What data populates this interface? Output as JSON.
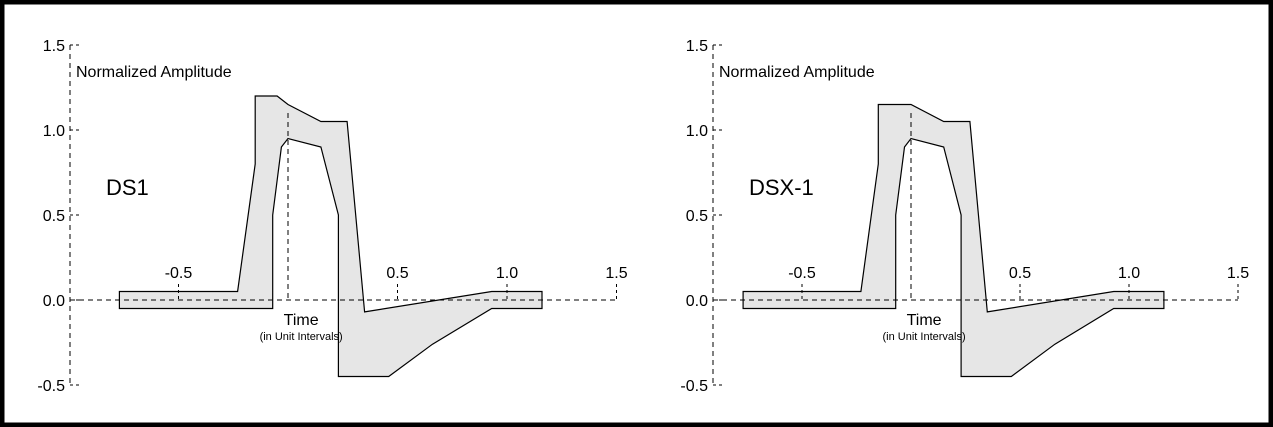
{
  "chart_data": [
    {
      "type": "area",
      "annotation": "DS1",
      "ylabel": "Normalized Amplitude",
      "xlabel": "Time",
      "xlabel_sub": "(in Unit Intervals)",
      "xlim": [
        -1.0,
        1.5
      ],
      "ylim": [
        -0.5,
        1.5
      ],
      "x_ticks": [
        -0.5,
        0.5,
        1.0,
        1.5
      ],
      "x_tick_labels": [
        "-0.5",
        "0.5",
        "1.0",
        "1.5"
      ],
      "y_ticks": [
        -0.5,
        0.0,
        0.5,
        1.0,
        1.5
      ],
      "y_tick_labels": [
        "-0.5",
        "0.0",
        "0.5",
        "1.0",
        "1.5"
      ],
      "upper_limit": [
        [
          -0.77,
          0.05
        ],
        [
          -0.23,
          0.05
        ],
        [
          -0.15,
          0.8
        ],
        [
          -0.15,
          1.2
        ],
        [
          -0.05,
          1.2
        ],
        [
          0.0,
          1.15
        ],
        [
          0.15,
          1.05
        ],
        [
          0.27,
          1.05
        ],
        [
          0.35,
          -0.07
        ],
        [
          0.93,
          0.05
        ],
        [
          1.16,
          0.05
        ]
      ],
      "lower_limit": [
        [
          -0.77,
          -0.05
        ],
        [
          -0.07,
          -0.05
        ],
        [
          -0.07,
          0.5
        ],
        [
          -0.03,
          0.9
        ],
        [
          0.0,
          0.95
        ],
        [
          0.15,
          0.9
        ],
        [
          0.23,
          0.5
        ],
        [
          0.23,
          -0.45
        ],
        [
          0.46,
          -0.45
        ],
        [
          0.66,
          -0.26
        ],
        [
          0.93,
          -0.05
        ],
        [
          1.16,
          -0.05
        ]
      ]
    },
    {
      "type": "area",
      "annotation": "DSX-1",
      "ylabel": "Normalized Amplitude",
      "xlabel": "Time",
      "xlabel_sub": "(in Unit Intervals)",
      "xlim": [
        -1.0,
        1.5
      ],
      "ylim": [
        -0.5,
        1.5
      ],
      "x_ticks": [
        -0.5,
        0.5,
        1.0,
        1.5
      ],
      "x_tick_labels": [
        "-0.5",
        "0.5",
        "1.0",
        "1.5"
      ],
      "y_ticks": [
        -0.5,
        0.0,
        0.5,
        1.0,
        1.5
      ],
      "y_tick_labels": [
        "-0.5",
        "0.0",
        "0.5",
        "1.0",
        "1.5"
      ],
      "upper_limit": [
        [
          -0.77,
          0.05
        ],
        [
          -0.23,
          0.05
        ],
        [
          -0.15,
          0.8
        ],
        [
          -0.15,
          1.15
        ],
        [
          0.0,
          1.15
        ],
        [
          0.15,
          1.05
        ],
        [
          0.27,
          1.05
        ],
        [
          0.35,
          -0.07
        ],
        [
          0.93,
          0.05
        ],
        [
          1.16,
          0.05
        ]
      ],
      "lower_limit": [
        [
          -0.77,
          -0.05
        ],
        [
          -0.07,
          -0.05
        ],
        [
          -0.07,
          0.5
        ],
        [
          -0.03,
          0.9
        ],
        [
          0.0,
          0.95
        ],
        [
          0.15,
          0.9
        ],
        [
          0.23,
          0.5
        ],
        [
          0.23,
          -0.45
        ],
        [
          0.46,
          -0.45
        ],
        [
          0.66,
          -0.26
        ],
        [
          0.93,
          -0.05
        ],
        [
          1.16,
          -0.05
        ]
      ]
    }
  ],
  "colors": {
    "fill": "#e6e6e6",
    "stroke": "#000000",
    "frame": "#000000"
  }
}
